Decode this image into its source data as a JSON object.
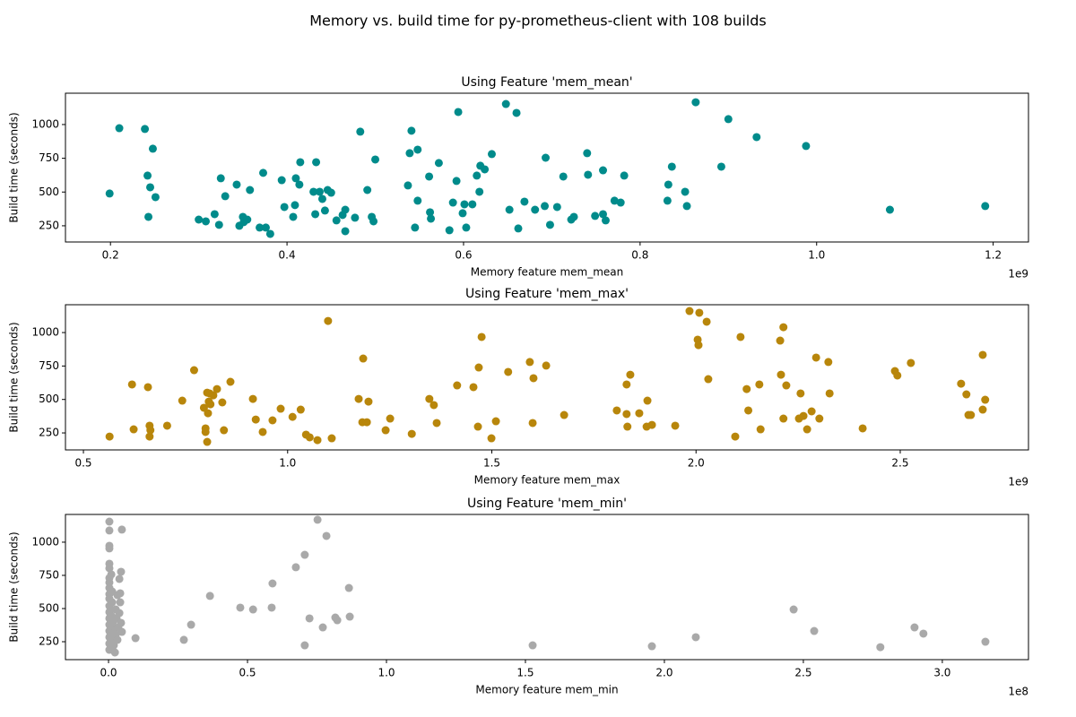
{
  "title": "Memory vs. build time for py-prometheus-client with 108 builds",
  "chart_data": [
    {
      "type": "scatter",
      "title": "Using Feature 'mem_mean'",
      "x_label": "Memory feature mem_mean",
      "y_label": "Build time (seconds)",
      "x_offset_label": "1e9",
      "color": "#008b8b",
      "xlim": [
        0.149,
        1.24
      ],
      "ylim": [
        130,
        1232
      ],
      "xticks": [
        0.2,
        0.4,
        0.6,
        0.8,
        {
          "value": 1,
          "label": "1.0"
        },
        1.2
      ],
      "yticks": [
        250,
        500,
        750,
        1000
      ],
      "x": [
        0.199,
        0.21,
        0.239,
        0.242,
        0.245,
        0.243,
        0.248,
        0.251,
        0.3,
        0.308,
        0.318,
        0.323,
        0.325,
        0.33,
        0.343,
        0.346,
        0.35,
        0.351,
        0.355,
        0.358,
        0.369,
        0.373,
        0.376,
        0.381,
        0.394,
        0.397,
        0.407,
        0.409,
        0.41,
        0.414,
        0.415,
        0.43,
        0.432,
        0.433,
        0.437,
        0.44,
        0.443,
        0.446,
        0.45,
        0.456,
        0.463,
        0.466,
        0.466,
        0.477,
        0.483,
        0.491,
        0.496,
        0.498,
        0.5,
        0.537,
        0.539,
        0.541,
        0.545,
        0.548,
        0.548,
        0.561,
        0.562,
        0.563,
        0.572,
        0.584,
        0.588,
        0.592,
        0.594,
        0.599,
        0.601,
        0.603,
        0.61,
        0.615,
        0.618,
        0.619,
        0.624,
        0.632,
        0.648,
        0.652,
        0.66,
        0.662,
        0.669,
        0.681,
        0.693,
        0.692,
        0.698,
        0.706,
        0.713,
        0.722,
        0.725,
        0.74,
        0.741,
        0.749,
        0.758,
        0.758,
        0.761,
        0.771,
        0.778,
        0.782,
        0.831,
        0.832,
        0.836,
        0.851,
        0.853,
        0.863,
        0.892,
        0.9,
        0.932,
        0.988,
        1.083,
        1.191
      ],
      "values": [
        489,
        973,
        967,
        622,
        535,
        316,
        821,
        462,
        296,
        283,
        336,
        257,
        602,
        469,
        555,
        250,
        316,
        277,
        296,
        515,
        237,
        642,
        237,
        190,
        588,
        389,
        316,
        403,
        602,
        555,
        721,
        502,
        336,
        721,
        502,
        449,
        363,
        515,
        495,
        290,
        330,
        369,
        210,
        310,
        947,
        515,
        316,
        283,
        741,
        549,
        788,
        954,
        237,
        436,
        814,
        615,
        350,
        303,
        715,
        217,
        422,
        582,
        1093,
        343,
        409,
        237,
        409,
        622,
        502,
        695,
        668,
        781,
        1152,
        369,
        1086,
        230,
        429,
        369,
        754,
        396,
        257,
        389,
        615,
        296,
        316,
        788,
        628,
        323,
        661,
        336,
        290,
        436,
        422,
        622,
        436,
        555,
        688,
        502,
        396,
        1165,
        688,
        1040,
        907,
        841,
        369,
        396
      ]
    },
    {
      "type": "scatter",
      "title": "Using Feature 'mem_max'",
      "x_label": "Memory feature mem_max",
      "y_label": "Build time (seconds)",
      "x_offset_label": "1e9",
      "color": "#b8860b",
      "xlim": [
        0.456,
        2.814
      ],
      "ylim": [
        123,
        1208
      ],
      "xticks": [
        0.5,
        {
          "value": 1,
          "label": "1.0"
        },
        1.5,
        {
          "value": 2,
          "label": "2.0"
        },
        2.5
      ],
      "yticks": [
        250,
        500,
        750,
        1000
      ],
      "x": [
        0.564,
        0.619,
        0.623,
        0.658,
        0.662,
        0.662,
        0.664,
        0.705,
        0.742,
        0.771,
        0.795,
        0.799,
        0.799,
        0.803,
        0.803,
        0.805,
        0.807,
        0.809,
        0.811,
        0.818,
        0.827,
        0.84,
        0.844,
        0.86,
        0.915,
        0.922,
        0.939,
        0.963,
        0.983,
        1.012,
        1.032,
        1.045,
        1.054,
        1.073,
        1.099,
        1.108,
        1.174,
        1.185,
        1.183,
        1.194,
        1.198,
        1.24,
        1.251,
        1.304,
        1.347,
        1.358,
        1.365,
        1.415,
        1.455,
        1.466,
        1.468,
        1.475,
        1.499,
        1.51,
        1.54,
        1.593,
        1.6,
        1.602,
        1.633,
        1.677,
        1.806,
        1.83,
        1.832,
        1.83,
        1.839,
        1.861,
        1.879,
        1.881,
        1.892,
        1.949,
        1.984,
        2.004,
        2.008,
        2.006,
        2.026,
        2.03,
        2.096,
        2.109,
        2.124,
        2.128,
        2.155,
        2.158,
        2.206,
        2.208,
        2.214,
        2.214,
        2.221,
        2.252,
        2.256,
        2.263,
        2.272,
        2.283,
        2.294,
        2.302,
        2.324,
        2.327,
        2.408,
        2.487,
        2.493,
        2.526,
        2.649,
        2.662,
        2.667,
        2.673,
        2.702,
        2.702,
        2.708
      ],
      "values": [
        223,
        612,
        277,
        592,
        304,
        223,
        270,
        304,
        491,
        719,
        438,
        284,
        257,
        183,
        551,
        397,
        484,
        545,
        464,
        531,
        578,
        478,
        270,
        632,
        504,
        350,
        257,
        344,
        431,
        370,
        424,
        237,
        217,
        196,
        1087,
        210,
        504,
        806,
        330,
        330,
        484,
        270,
        357,
        243,
        504,
        458,
        324,
        605,
        592,
        297,
        739,
        967,
        210,
        337,
        706,
        780,
        324,
        659,
        753,
        384,
        418,
        391,
        297,
        612,
        685,
        397,
        297,
        491,
        310,
        304,
        1161,
        947,
        1148,
        906,
        1081,
        652,
        223,
        967,
        578,
        418,
        612,
        277,
        940,
        685,
        357,
        1040,
        605,
        357,
        545,
        377,
        277,
        411,
        813,
        357,
        780,
        545,
        284,
        712,
        679,
        773,
        618,
        538,
        384,
        384,
        833,
        424,
        498
      ]
    },
    {
      "type": "scatter",
      "title": "Using Feature 'mem_min'",
      "x_label": "Memory feature mem_min",
      "y_label": "Build time (seconds)",
      "x_offset_label": "1e8",
      "color": "#a9a9a9",
      "xlim": [
        -0.155,
        3.31
      ],
      "ylim": [
        115,
        1209
      ],
      "xticks": [
        {
          "value": 0,
          "label": "0.0"
        },
        0.5,
        {
          "value": 1,
          "label": "1.0"
        },
        1.5,
        {
          "value": 2,
          "label": "2.0"
        },
        2.5,
        {
          "value": 3,
          "label": "3.0"
        }
      ],
      "yticks": [
        250,
        500,
        750,
        1000
      ],
      "x": [
        0.003,
        0.003,
        0.003,
        0.003,
        0.003,
        0.003,
        0.003,
        0.003,
        0.003,
        0.003,
        0.003,
        0.003,
        0.003,
        0.003,
        0.003,
        0.003,
        0.003,
        0.003,
        0.003,
        0.01,
        0.013,
        0.013,
        0.013,
        0.013,
        0.013,
        0.016,
        0.019,
        0.019,
        0.023,
        0.026,
        0.026,
        0.029,
        0.032,
        0.032,
        0.035,
        0.039,
        0.039,
        0.042,
        0.045,
        0.045,
        0.042,
        0.048,
        0.048,
        0.097,
        0.271,
        0.297,
        0.365,
        0.474,
        0.52,
        0.587,
        0.59,
        0.674,
        0.706,
        0.706,
        0.723,
        0.752,
        0.771,
        0.784,
        0.816,
        0.823,
        0.865,
        0.868,
        1.526,
        1.955,
        2.113,
        2.465,
        2.539,
        2.777,
        2.9,
        2.932,
        3.155
      ],
      "values": [
        1155,
        1088,
        973,
        953,
        838,
        804,
        730,
        696,
        655,
        608,
        574,
        520,
        473,
        426,
        378,
        331,
        284,
        236,
        189,
        757,
        628,
        547,
        439,
        358,
        277,
        399,
        318,
        223,
        169,
        493,
        304,
        426,
        601,
        264,
        358,
        723,
        466,
        547,
        777,
        392,
        615,
        1095,
        324,
        277,
        264,
        378,
        595,
        507,
        493,
        507,
        689,
        811,
        905,
        223,
        426,
        1169,
        358,
        1047,
        432,
        412,
        655,
        439,
        223,
        216,
        284,
        493,
        331,
        209,
        358,
        311,
        250
      ]
    }
  ]
}
